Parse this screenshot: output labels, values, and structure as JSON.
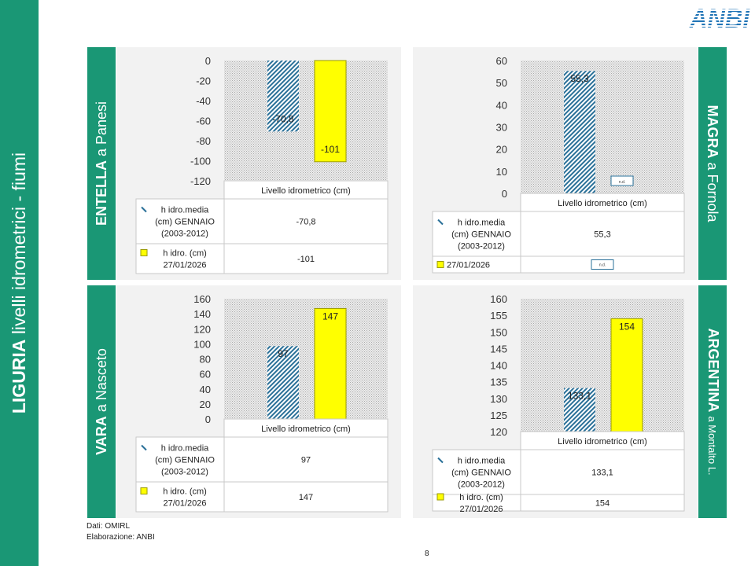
{
  "side_title": {
    "bold": "LIGURIA",
    "rest": "livelli idrometrici - fiumi"
  },
  "logo": {
    "text": "ANBI",
    "color": "#1f74b6"
  },
  "colors": {
    "green": "#1a9775",
    "hist_stroke": "#2a7098",
    "current_fill": "#ffff00",
    "current_stroke": "#9a9a00",
    "plot_bg": "#dcdcdc"
  },
  "chart_data": [
    {
      "type": "bar",
      "river": {
        "bold": "ENTELLA",
        "rest": "a Panesi"
      },
      "ylim": [
        -120,
        0
      ],
      "ticks": [
        0,
        -20,
        -40,
        -60,
        -80,
        -100,
        -120
      ],
      "category": "Livello idrometrico (cm)",
      "series": [
        {
          "name": "h idro.media (cm) GENNAIO (2003-2012)",
          "name_lines": [
            "h idro.media",
            "(cm) GENNAIO",
            "(2003-2012)"
          ],
          "value": -70.8,
          "label": "-70,8",
          "table_value": "-70,8",
          "style": "hatch"
        },
        {
          "name": "h idro. (cm) 27/01/2026",
          "name_lines": [
            "h idro. (cm)",
            "27/01/2026"
          ],
          "value": -101,
          "label": "-101",
          "table_value": "-101",
          "style": "solid"
        }
      ]
    },
    {
      "type": "bar",
      "river": {
        "bold": "MAGRA",
        "rest": "a Fornola"
      },
      "ylim": [
        0,
        60
      ],
      "ticks": [
        60,
        50,
        40,
        30,
        20,
        10,
        0
      ],
      "category": "Livello idrometrico (cm)",
      "series": [
        {
          "name": "h idro.media (cm) GENNAIO (2003-2012)",
          "name_lines": [
            "h idro.media",
            "(cm) GENNAIO",
            "(2003-2012)"
          ],
          "value": 55.3,
          "label": "55,3",
          "table_value": "55,3",
          "style": "hatch"
        },
        {
          "name": "27/01/2026",
          "name_lines": [
            "27/01/2026"
          ],
          "value": null,
          "label": "n.d.",
          "table_value": "n.d.",
          "style": "solid"
        }
      ]
    },
    {
      "type": "bar",
      "river": {
        "bold": "VARA",
        "rest": "a Nasceto"
      },
      "ylim": [
        0,
        160
      ],
      "ticks": [
        160,
        140,
        120,
        100,
        80,
        60,
        40,
        20,
        0
      ],
      "category": "Livello idrometrico (cm)",
      "series": [
        {
          "name": "h idro.media (cm) GENNAIO (2003-2012)",
          "name_lines": [
            "h idro.media",
            "(cm) GENNAIO",
            "(2003-2012)"
          ],
          "value": 97,
          "label": "97",
          "table_value": "97",
          "style": "hatch"
        },
        {
          "name": "h idro. (cm) 27/01/2026",
          "name_lines": [
            "h idro. (cm)",
            "27/01/2026"
          ],
          "value": 147,
          "label": "147",
          "table_value": "147",
          "style": "solid"
        }
      ]
    },
    {
      "type": "bar",
      "river": {
        "bold": "ARGENTINA",
        "rest": "a Montalto L."
      },
      "ylim": [
        120,
        160
      ],
      "ticks": [
        160,
        155,
        150,
        145,
        140,
        135,
        130,
        125,
        120
      ],
      "category": "Livello idrometrico (cm)",
      "series": [
        {
          "name": "h idro.media (cm) GENNAIO (2003-2012)",
          "name_lines": [
            "h idro.media",
            "(cm) GENNAIO",
            "(2003-2012)"
          ],
          "value": 133.1,
          "label": "133,1",
          "table_value": "133,1",
          "style": "hatch"
        },
        {
          "name": "h idro. (cm) 27/01/2026",
          "name_lines": [
            "h idro. (cm)",
            "27/01/2026"
          ],
          "value": 154,
          "label": "154",
          "table_value": "154",
          "style": "solid"
        }
      ]
    }
  ],
  "footer": {
    "line1": "Dati: OMIRL",
    "line2": "Elaborazione: ANBI"
  },
  "page_number": "8"
}
